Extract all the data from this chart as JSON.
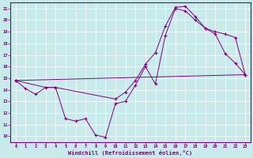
{
  "xlabel": "Windchill (Refroidissement éolien,°C)",
  "background_color": "#c8eaea",
  "line_color": "#800080",
  "xlim": [
    -0.5,
    23.5
  ],
  "ylim": [
    9.5,
    21.5
  ],
  "xticks": [
    0,
    1,
    2,
    3,
    4,
    5,
    6,
    7,
    8,
    9,
    10,
    11,
    12,
    13,
    14,
    15,
    16,
    17,
    18,
    19,
    20,
    21,
    22,
    23
  ],
  "yticks": [
    10,
    11,
    12,
    13,
    14,
    15,
    16,
    17,
    18,
    19,
    20,
    21
  ],
  "line1_x": [
    0,
    1,
    2,
    3,
    4,
    5,
    6,
    7,
    8,
    9,
    10,
    11,
    12,
    13,
    14,
    15,
    16,
    17,
    18,
    19,
    20,
    21,
    22,
    23
  ],
  "line1_y": [
    14.8,
    14.1,
    13.6,
    14.2,
    14.2,
    11.5,
    11.3,
    11.5,
    10.1,
    9.9,
    12.8,
    13.0,
    14.4,
    16.0,
    14.5,
    18.7,
    21.0,
    20.8,
    20.0,
    19.3,
    18.8,
    17.1,
    16.3,
    15.3
  ],
  "line2_x": [
    0,
    3,
    4,
    10,
    11,
    12,
    13,
    14,
    15,
    16,
    17,
    18,
    19,
    20,
    21,
    22,
    23
  ],
  "line2_y": [
    14.8,
    14.2,
    14.2,
    13.2,
    13.8,
    14.8,
    16.2,
    17.2,
    19.5,
    21.1,
    21.2,
    20.3,
    19.3,
    19.0,
    18.8,
    18.5,
    15.3
  ],
  "line3_x": [
    0,
    23
  ],
  "line3_y": [
    14.8,
    15.3
  ]
}
